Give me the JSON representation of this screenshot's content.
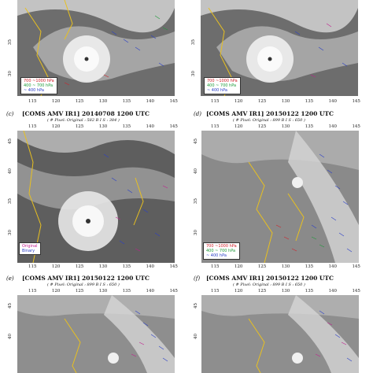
{
  "panels": {
    "a": {
      "legend": [
        "700 ~1000 hPa",
        "400 ~ 700 hPa",
        "~ 400 hPa"
      ]
    },
    "b": {
      "legend": [
        "700 ~1000 hPa",
        "400 ~ 700 hPa",
        "~ 400 hPa"
      ]
    },
    "c": {
      "letter": "(c)",
      "title": "[COMS AMV IR1]   20140708 1200 UTC",
      "subtitle": "( # Pixel:  Original : 582      B I S : 384 )",
      "lon_ticks": [
        "115",
        "120",
        "125",
        "130",
        "135",
        "140",
        "145"
      ],
      "legend": [
        "Original",
        "Binary"
      ]
    },
    "d": {
      "letter": "(d)",
      "title": "[COMS AMV IR1]   20150122 1200 UTC",
      "subtitle": "( # Pixel:  Original : 899      B I S : 650 )",
      "lon_ticks": [
        "115",
        "120",
        "125",
        "130",
        "135",
        "140",
        "145"
      ],
      "legend": [
        "700 ~1000 hPa",
        "400 ~ 700 hPa",
        "~ 400 hPa"
      ]
    },
    "e": {
      "letter": "(e)",
      "title": "[COMS AMV IR1]   20150122 1200 UTC",
      "subtitle": "( # Pixel:  Original : 899      B I S : 650 )",
      "lon_ticks": [
        "115",
        "120",
        "125",
        "130",
        "135",
        "140",
        "145"
      ]
    },
    "f": {
      "letter": "(f)",
      "title": "[COMS AMV IR1]   20150122 1200 UTC",
      "subtitle": "( # Pixel:  Original : 899      B I S : 650 )",
      "lon_ticks": [
        "115",
        "120",
        "125",
        "130",
        "135",
        "140",
        "145"
      ]
    }
  },
  "lat_ticks_top": [
    "35",
    "30"
  ],
  "lat_ticks_mid": [
    "45",
    "40",
    "35",
    "30"
  ],
  "lat_ticks_bot": [
    "45",
    "40"
  ],
  "colors": {
    "low": "#d0202a",
    "mid": "#1e9a3a",
    "high": "#2a3fc8",
    "coast": "#e8c020",
    "original": "#c21f8f"
  }
}
